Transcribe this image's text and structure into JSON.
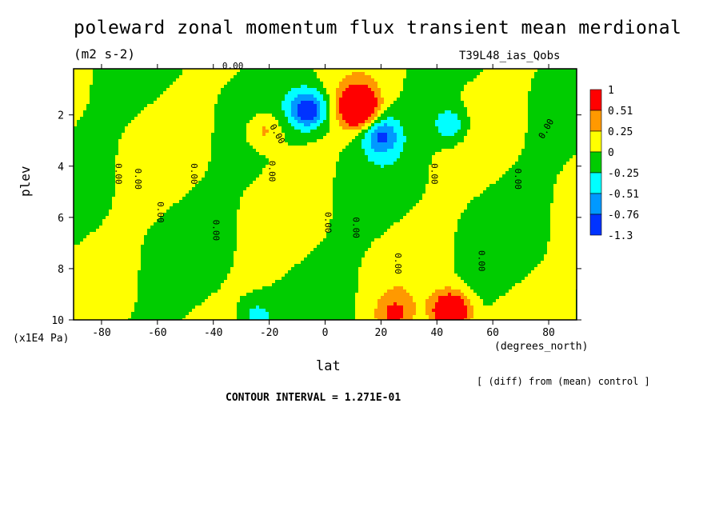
{
  "chart_data": {
    "type": "heatmap",
    "title": "poleward zonal momentum flux transient mean merdional",
    "units": "(m2 s-2)",
    "run_id": "T39L48_ias_Qobs",
    "xlabel": "lat",
    "x_units": "(degrees_north)",
    "ylabel": "plev",
    "y_units": "(x1E4 Pa)",
    "xlim": [
      -90,
      90
    ],
    "ylim": [
      10,
      0.2
    ],
    "x_ticks": [
      -80,
      -60,
      -40,
      -20,
      0,
      20,
      40,
      60,
      80
    ],
    "y_ticks": [
      2,
      4,
      6,
      8,
      10
    ],
    "x_tick_labels": [
      "-80",
      "-60",
      "-40",
      "-20",
      "0",
      "20",
      "40",
      "60",
      "80"
    ],
    "y_tick_labels": [
      "2",
      "4",
      "6",
      "8",
      "10"
    ],
    "contour_label": "0.00",
    "contour_interval_text": "CONTOUR INTERVAL = 1.271E-01",
    "note": "[ (diff) from (mean) control ]",
    "colorbar": {
      "levels": [
        "1",
        "0.51",
        "0.25",
        "0",
        "-0.25",
        "-0.51",
        "-0.76",
        "-1.3"
      ],
      "colors": [
        "#ff0000",
        "#ff9900",
        "#ffff00",
        "#00cc00",
        "#00ffff",
        "#0099ff",
        "#0033ff"
      ]
    },
    "features": [
      {
        "lat": 12,
        "plev": 1.7,
        "value": 1.1
      },
      {
        "lat": -6,
        "plev": 1.8,
        "value": -0.8
      },
      {
        "lat": 20,
        "plev": 2.8,
        "value": -0.6
      },
      {
        "lat": 45,
        "plev": 2.4,
        "value": -0.4
      },
      {
        "lat": -22,
        "plev": 2.6,
        "value": 0.35
      },
      {
        "lat": 45,
        "plev": 9.7,
        "value": 1.0
      },
      {
        "lat": 25,
        "plev": 9.8,
        "value": 0.4
      },
      {
        "lat": -25,
        "plev": 9.9,
        "value": -0.3
      }
    ]
  }
}
